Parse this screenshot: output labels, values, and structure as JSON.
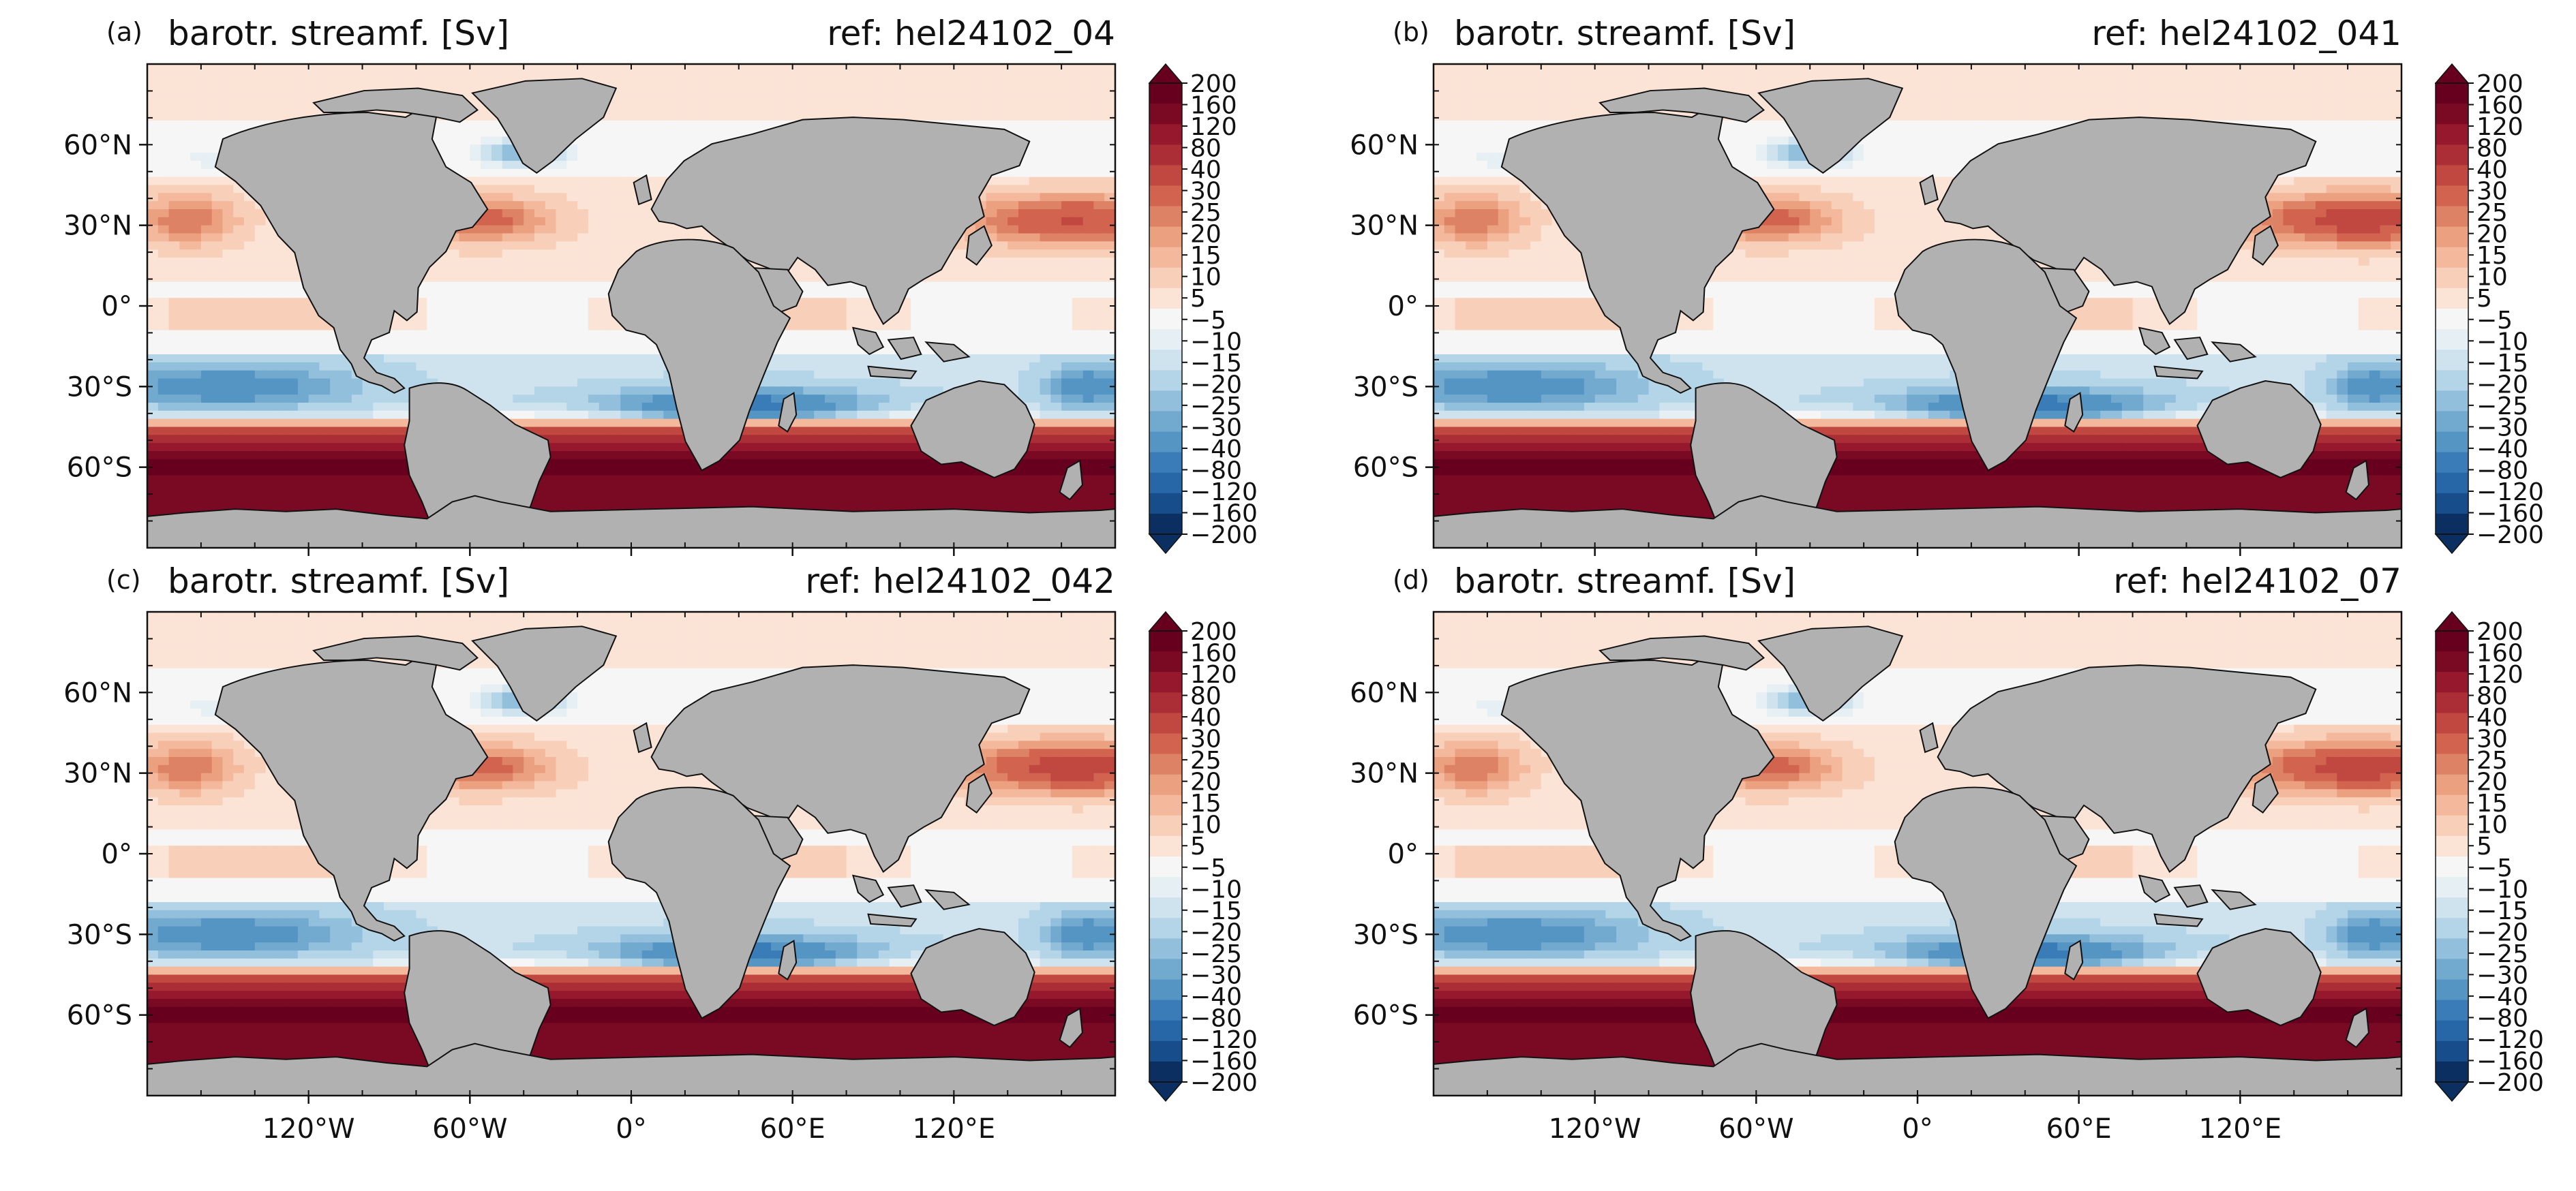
{
  "chart_data": [
    {
      "type": "heatmap",
      "panel_label": "(a)",
      "title": "barotr. streamf. [Sv]",
      "ref_label": "ref: hel24102_04",
      "variable": "barotropic streamfunction",
      "south_atlantic_gyre": -40,
      "north_pacific_gyre": 25,
      "acc_strength": 200
    },
    {
      "type": "heatmap",
      "panel_label": "(b)",
      "title": "barotr. streamf. [Sv]",
      "ref_label": "ref: hel24102_041",
      "variable": "barotropic streamfunction",
      "south_atlantic_gyre": -40,
      "north_pacific_gyre": 30,
      "acc_strength": 200
    },
    {
      "type": "heatmap",
      "panel_label": "(c)",
      "title": "barotr. streamf. [Sv]",
      "ref_label": "ref: hel24102_042",
      "variable": "barotropic streamfunction",
      "south_atlantic_gyre": -40,
      "north_pacific_gyre": 30,
      "acc_strength": 200
    },
    {
      "type": "heatmap",
      "panel_label": "(d)",
      "title": "barotr. streamf. [Sv]",
      "ref_label": "ref: hel24102_07",
      "variable": "barotropic streamfunction",
      "south_atlantic_gyre": -40,
      "north_pacific_gyre": 30,
      "acc_strength": 200
    }
  ],
  "axes": {
    "lon_ticks": [
      "120°W",
      "60°W",
      "0°",
      "60°E",
      "120°E"
    ],
    "lon_values": [
      -120,
      -60,
      0,
      60,
      120
    ],
    "lat_ticks": [
      "60°N",
      "30°N",
      "0°",
      "30°S",
      "60°S"
    ],
    "lat_values": [
      60,
      30,
      0,
      -30,
      -60
    ],
    "xlim": [
      -180,
      180
    ],
    "ylim": [
      -90,
      90
    ]
  },
  "colorbar": {
    "levels": [
      -200,
      -160,
      -120,
      -80,
      -40,
      -30,
      -25,
      -20,
      -15,
      -10,
      -5,
      5,
      10,
      15,
      20,
      25,
      30,
      40,
      80,
      120,
      160,
      200
    ],
    "tick_labels": [
      "200",
      "160",
      "120",
      "80",
      "40",
      "30",
      "25",
      "20",
      "15",
      "10",
      "5",
      "−5",
      "−10",
      "−15",
      "−20",
      "−25",
      "−30",
      "−40",
      "−80",
      "−120",
      "−160",
      "−200"
    ],
    "colors": [
      "#0b2f61",
      "#184d8c",
      "#2767a8",
      "#3a7cb7",
      "#5495c4",
      "#72a9cf",
      "#92c0dc",
      "#b4d5e8",
      "#cfe3ef",
      "#e6eff4",
      "#f6f6f6",
      "#fbe3d6",
      "#f8cfb9",
      "#f4b99c",
      "#eba07f",
      "#de8266",
      "#d1634f",
      "#c04840",
      "#ab2d36",
      "#95182c",
      "#7a0a24",
      "#67001f"
    ],
    "extend": "both"
  },
  "colors": {
    "land": "#b1b1b1",
    "ocean_background": "#f4f6f6",
    "coast": "#111111"
  }
}
